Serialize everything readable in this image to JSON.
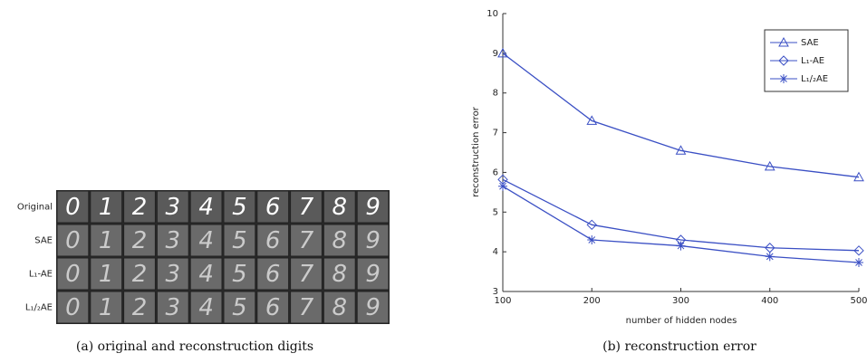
{
  "panel_a": {
    "rows": [
      "Original",
      "SAE",
      "L₁-AE",
      "L₁/₂AE"
    ],
    "digits": [
      "0",
      "1",
      "2",
      "3",
      "4",
      "5",
      "6",
      "7",
      "8",
      "9"
    ],
    "caption": "(a) original and reconstruction digits"
  },
  "chart_data": {
    "type": "line",
    "x": [
      100,
      200,
      300,
      400,
      500
    ],
    "xlim": [
      100,
      500
    ],
    "xticks": [
      100,
      200,
      300,
      400,
      500
    ],
    "ylim": [
      3,
      10
    ],
    "yticks": [
      3,
      4,
      5,
      6,
      7,
      8,
      9,
      10
    ],
    "xlabel": "number of hidden nodes",
    "ylabel": "reconstruction error",
    "legend": "upper right",
    "series": [
      {
        "name": "SAE",
        "color": "#3a4fc4",
        "marker": "triangle",
        "values": [
          9.0,
          7.3,
          6.55,
          6.15,
          5.88
        ]
      },
      {
        "name": "L₁-AE",
        "color": "#3a4fc4",
        "marker": "diamond",
        "values": [
          5.82,
          4.68,
          4.3,
          4.1,
          4.03
        ]
      },
      {
        "name": "L₁/₂AE",
        "color": "#3a4fc4",
        "marker": "asterisk",
        "values": [
          5.65,
          4.3,
          4.15,
          3.88,
          3.73
        ]
      }
    ],
    "caption": "(b) reconstruction error"
  }
}
